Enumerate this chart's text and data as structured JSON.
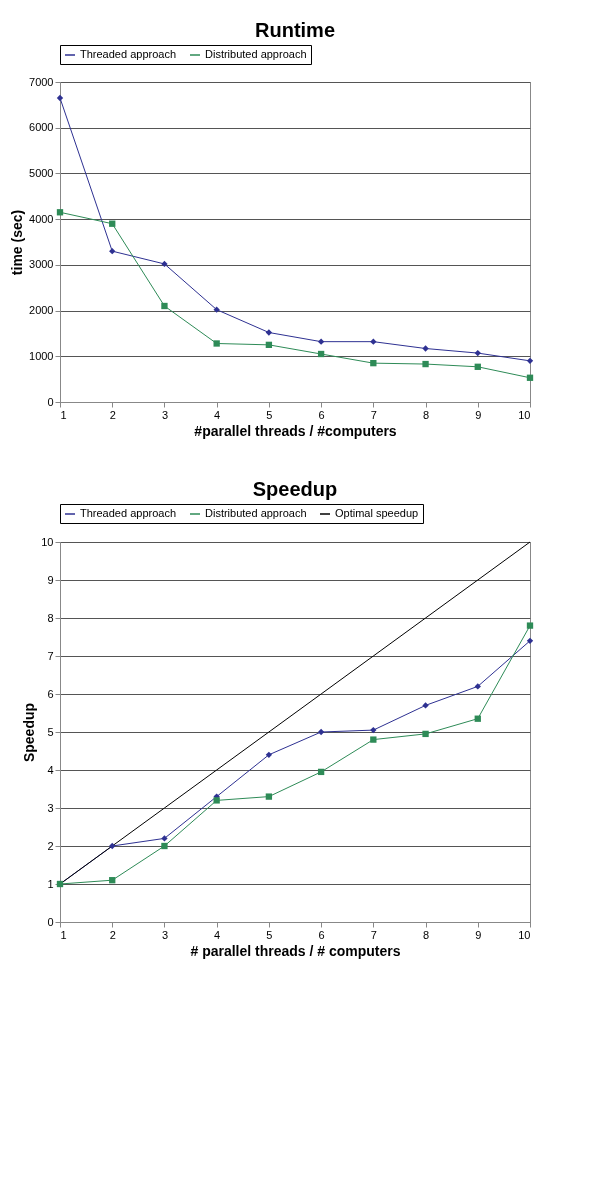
{
  "chart_data": [
    {
      "type": "line",
      "title": "Runtime",
      "xlabel": "#parallel threads / #computers",
      "ylabel": "time (sec)",
      "x": [
        1,
        2,
        3,
        4,
        5,
        6,
        7,
        8,
        9,
        10
      ],
      "xlim": [
        1,
        10
      ],
      "xticks": [
        1,
        2,
        3,
        4,
        5,
        6,
        7,
        8,
        9,
        10
      ],
      "ylim": [
        0,
        7000
      ],
      "yticks": [
        0,
        1000,
        2000,
        3000,
        4000,
        5000,
        6000,
        7000
      ],
      "grid": "y",
      "legend": "top",
      "line_style": "solid",
      "series": [
        {
          "name": "Threaded approach",
          "color": "#2e3192",
          "marker": "diamond",
          "values": [
            6650,
            3300,
            3020,
            2020,
            1520,
            1320,
            1320,
            1170,
            1070,
            900
          ]
        },
        {
          "name": "Distributed approach",
          "color": "#2e8b57",
          "marker": "square",
          "values": [
            4150,
            3900,
            2100,
            1280,
            1250,
            1050,
            850,
            830,
            770,
            530
          ]
        }
      ]
    },
    {
      "type": "line",
      "title": "Speedup",
      "xlabel": "# parallel threads / # computers",
      "ylabel": "Speedup",
      "x": [
        1,
        2,
        3,
        4,
        5,
        6,
        7,
        8,
        9,
        10
      ],
      "xlim": [
        1,
        10
      ],
      "xticks": [
        1,
        2,
        3,
        4,
        5,
        6,
        7,
        8,
        9,
        10
      ],
      "ylim": [
        0,
        10
      ],
      "yticks": [
        0,
        1,
        2,
        3,
        4,
        5,
        6,
        7,
        8,
        9,
        10
      ],
      "grid": "y",
      "legend": "top",
      "line_style": "solid",
      "series": [
        {
          "name": "Threaded approach",
          "color": "#2e3192",
          "marker": "diamond",
          "values": [
            1,
            2,
            2.2,
            3.3,
            4.4,
            5.0,
            5.05,
            5.7,
            6.2,
            7.4
          ]
        },
        {
          "name": "Distributed approach",
          "color": "#2e8b57",
          "marker": "square",
          "values": [
            1,
            1.1,
            2.0,
            3.2,
            3.3,
            3.95,
            4.8,
            4.95,
            5.35,
            7.8
          ]
        },
        {
          "name": "Optimal speedup",
          "color": "#000000",
          "marker": "none",
          "values": [
            1,
            2,
            3,
            4,
            5,
            6,
            7,
            8,
            9,
            10
          ]
        }
      ]
    }
  ]
}
